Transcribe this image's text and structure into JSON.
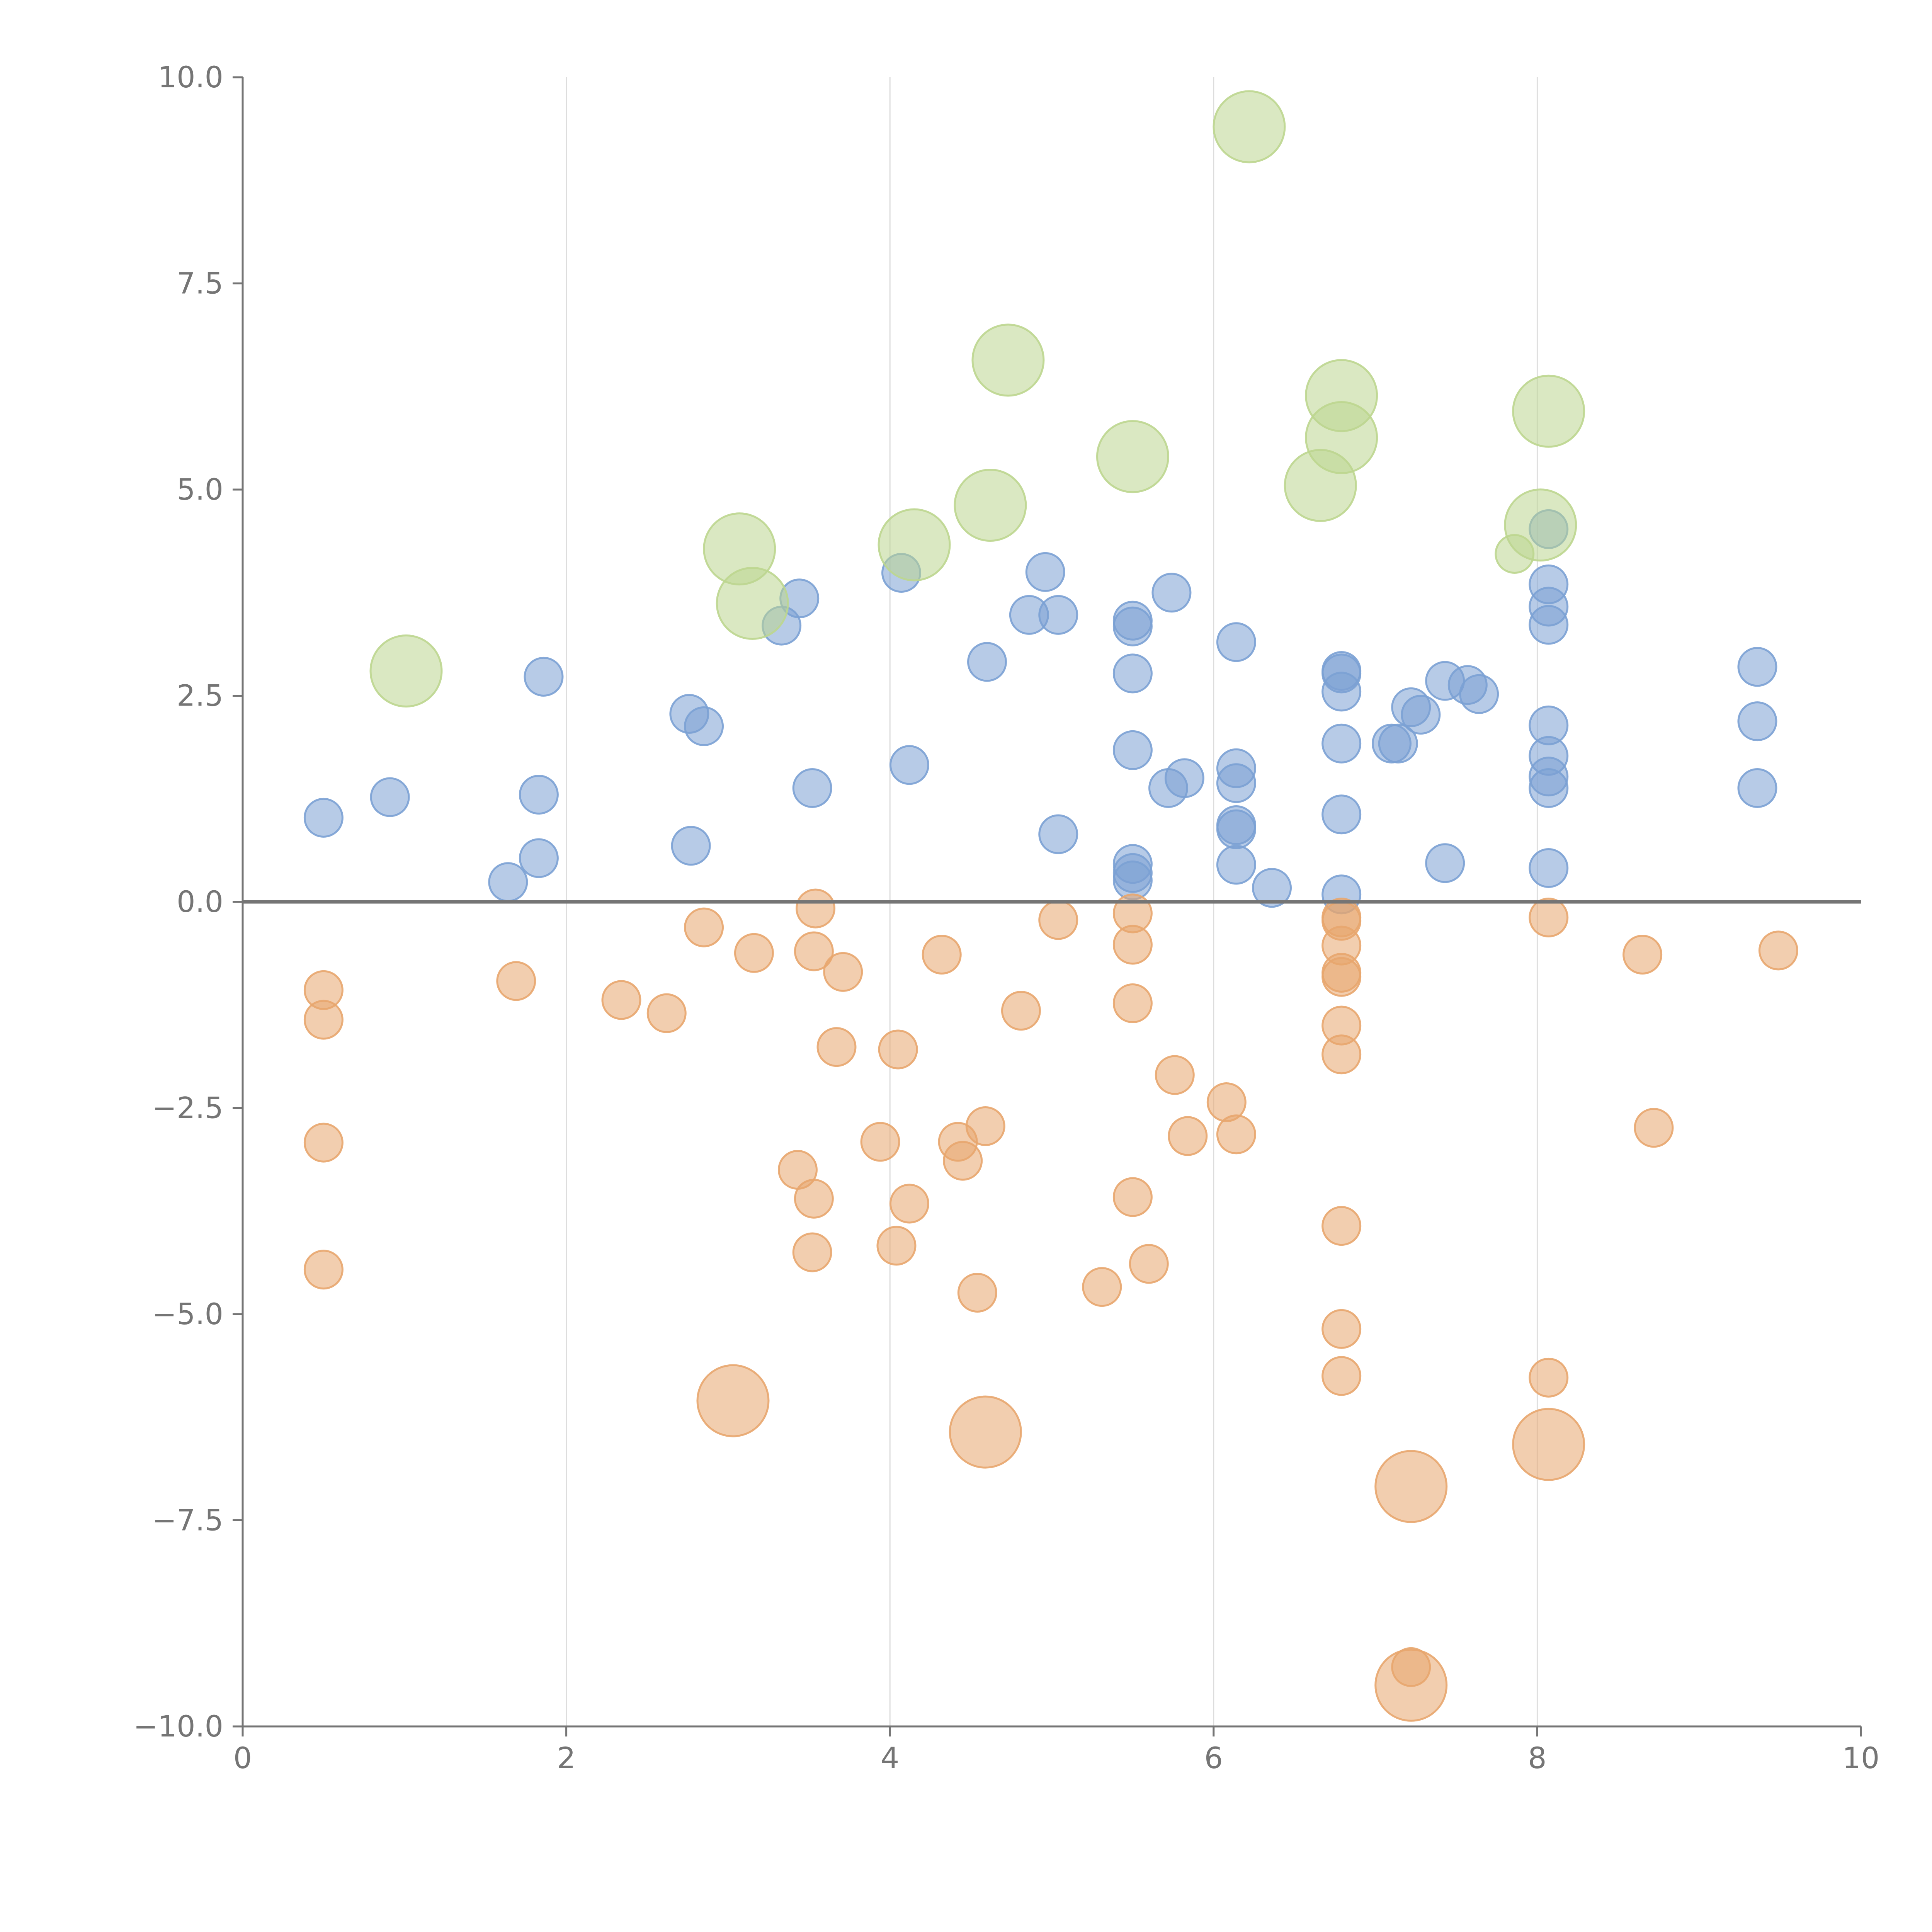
{
  "chart_data": {
    "type": "scatter",
    "title": "",
    "xlabel": "",
    "ylabel": "",
    "xlim": [
      0,
      10
    ],
    "ylim": [
      -10,
      10
    ],
    "x_ticks": [
      0,
      2,
      4,
      6,
      8,
      10
    ],
    "x_tick_labels": [
      "0",
      "2",
      "4",
      "6",
      "8",
      "10"
    ],
    "y_ticks": [
      10,
      7.5,
      5,
      2.5,
      0,
      -2.5,
      -5,
      -7.5,
      -10
    ],
    "y_tick_labels": [
      "10.0",
      "7.5",
      "5.0",
      "2.5",
      "0.0",
      "−2.5",
      "−5.0",
      "−7.5",
      "−10.0"
    ],
    "vertical_gridlines": [
      2,
      4,
      6,
      8
    ],
    "zero_line": true,
    "legend": "none",
    "series": [
      {
        "name": "blue",
        "color": "#7ba1d4",
        "points": [
          {
            "x": 0.5,
            "y": 1.02,
            "size": 1
          },
          {
            "x": 0.91,
            "y": 1.27,
            "size": 1
          },
          {
            "x": 1.64,
            "y": 0.24,
            "size": 1
          },
          {
            "x": 1.83,
            "y": 0.53,
            "size": 1
          },
          {
            "x": 1.83,
            "y": 1.3,
            "size": 1
          },
          {
            "x": 1.86,
            "y": 2.73,
            "size": 1
          },
          {
            "x": 2.77,
            "y": 0.68,
            "size": 1
          },
          {
            "x": 2.76,
            "y": 2.28,
            "size": 1
          },
          {
            "x": 2.85,
            "y": 2.13,
            "size": 1
          },
          {
            "x": 3.33,
            "y": 3.35,
            "size": 1
          },
          {
            "x": 3.44,
            "y": 3.68,
            "size": 1
          },
          {
            "x": 3.52,
            "y": 1.38,
            "size": 1
          },
          {
            "x": 4.07,
            "y": 3.99,
            "size": 1
          },
          {
            "x": 4.12,
            "y": 1.66,
            "size": 1
          },
          {
            "x": 4.6,
            "y": 2.91,
            "size": 1
          },
          {
            "x": 4.86,
            "y": 3.48,
            "size": 1
          },
          {
            "x": 4.96,
            "y": 4.0,
            "size": 1
          },
          {
            "x": 5.04,
            "y": 3.48,
            "size": 1
          },
          {
            "x": 5.04,
            "y": 0.82,
            "size": 1
          },
          {
            "x": 5.5,
            "y": 3.41,
            "size": 1
          },
          {
            "x": 5.5,
            "y": 3.34,
            "size": 1
          },
          {
            "x": 5.5,
            "y": 2.77,
            "size": 1
          },
          {
            "x": 5.5,
            "y": 1.84,
            "size": 1
          },
          {
            "x": 5.5,
            "y": 0.46,
            "size": 1
          },
          {
            "x": 5.5,
            "y": 0.35,
            "size": 1
          },
          {
            "x": 5.5,
            "y": 0.26,
            "size": 1
          },
          {
            "x": 5.72,
            "y": 1.38,
            "size": 1
          },
          {
            "x": 5.74,
            "y": 3.75,
            "size": 1
          },
          {
            "x": 5.82,
            "y": 1.5,
            "size": 1
          },
          {
            "x": 6.14,
            "y": 3.15,
            "size": 1
          },
          {
            "x": 6.14,
            "y": 1.62,
            "size": 1
          },
          {
            "x": 6.14,
            "y": 1.44,
            "size": 1
          },
          {
            "x": 6.14,
            "y": 0.93,
            "size": 1
          },
          {
            "x": 6.14,
            "y": 0.88,
            "size": 1
          },
          {
            "x": 6.14,
            "y": 0.45,
            "size": 1
          },
          {
            "x": 6.36,
            "y": 0.17,
            "size": 1
          },
          {
            "x": 6.79,
            "y": 2.8,
            "size": 1
          },
          {
            "x": 6.79,
            "y": 2.77,
            "size": 1
          },
          {
            "x": 6.79,
            "y": 2.55,
            "size": 1
          },
          {
            "x": 6.79,
            "y": 1.92,
            "size": 1
          },
          {
            "x": 6.79,
            "y": 1.06,
            "size": 1
          },
          {
            "x": 6.79,
            "y": 0.09,
            "size": 1
          },
          {
            "x": 7.1,
            "y": 1.92,
            "size": 1
          },
          {
            "x": 7.14,
            "y": 1.92,
            "size": 1
          },
          {
            "x": 7.22,
            "y": 2.36,
            "size": 1
          },
          {
            "x": 7.28,
            "y": 2.27,
            "size": 1
          },
          {
            "x": 7.43,
            "y": 2.68,
            "size": 1
          },
          {
            "x": 7.43,
            "y": 0.47,
            "size": 1
          },
          {
            "x": 7.57,
            "y": 2.63,
            "size": 1
          },
          {
            "x": 7.64,
            "y": 2.52,
            "size": 1
          },
          {
            "x": 8.07,
            "y": 4.52,
            "size": 1
          },
          {
            "x": 8.07,
            "y": 3.85,
            "size": 1
          },
          {
            "x": 8.07,
            "y": 3.58,
            "size": 1
          },
          {
            "x": 8.07,
            "y": 3.36,
            "size": 1
          },
          {
            "x": 8.07,
            "y": 2.14,
            "size": 1
          },
          {
            "x": 8.07,
            "y": 1.77,
            "size": 1
          },
          {
            "x": 8.07,
            "y": 1.52,
            "size": 1
          },
          {
            "x": 8.07,
            "y": 1.38,
            "size": 1
          },
          {
            "x": 8.07,
            "y": 0.41,
            "size": 1
          },
          {
            "x": 9.36,
            "y": 2.85,
            "size": 1
          },
          {
            "x": 9.36,
            "y": 2.19,
            "size": 1
          },
          {
            "x": 9.36,
            "y": 1.38,
            "size": 1
          }
        ]
      },
      {
        "name": "orange",
        "color": "#e8a66e",
        "points": [
          {
            "x": 0.5,
            "y": -1.07,
            "size": 1
          },
          {
            "x": 0.5,
            "y": -1.43,
            "size": 1
          },
          {
            "x": 0.5,
            "y": -2.92,
            "size": 1
          },
          {
            "x": 0.5,
            "y": -4.46,
            "size": 1
          },
          {
            "x": 1.69,
            "y": -0.96,
            "size": 1
          },
          {
            "x": 2.34,
            "y": -1.19,
            "size": 1
          },
          {
            "x": 2.62,
            "y": -1.35,
            "size": 1
          },
          {
            "x": 2.85,
            "y": -0.31,
            "size": 1
          },
          {
            "x": 3.16,
            "y": -0.62,
            "size": 1
          },
          {
            "x": 3.54,
            "y": -0.08,
            "size": 1
          },
          {
            "x": 3.53,
            "y": -0.6,
            "size": 1
          },
          {
            "x": 3.71,
            "y": -0.85,
            "size": 1
          },
          {
            "x": 3.67,
            "y": -1.76,
            "size": 1
          },
          {
            "x": 3.43,
            "y": -3.25,
            "size": 1
          },
          {
            "x": 3.53,
            "y": -3.6,
            "size": 1
          },
          {
            "x": 3.52,
            "y": -4.25,
            "size": 1
          },
          {
            "x": 4.05,
            "y": -1.79,
            "size": 1
          },
          {
            "x": 3.94,
            "y": -2.91,
            "size": 1
          },
          {
            "x": 4.12,
            "y": -3.66,
            "size": 1
          },
          {
            "x": 4.04,
            "y": -4.17,
            "size": 1
          },
          {
            "x": 4.32,
            "y": -0.64,
            "size": 1
          },
          {
            "x": 4.42,
            "y": -2.91,
            "size": 1
          },
          {
            "x": 4.45,
            "y": -3.14,
            "size": 1
          },
          {
            "x": 4.59,
            "y": -2.72,
            "size": 1
          },
          {
            "x": 4.54,
            "y": -4.74,
            "size": 1
          },
          {
            "x": 4.81,
            "y": -1.32,
            "size": 1
          },
          {
            "x": 5.04,
            "y": -0.22,
            "size": 1
          },
          {
            "x": 5.31,
            "y": -4.67,
            "size": 1
          },
          {
            "x": 5.5,
            "y": -0.14,
            "size": 1
          },
          {
            "x": 5.5,
            "y": -0.52,
            "size": 1
          },
          {
            "x": 5.5,
            "y": -1.23,
            "size": 1
          },
          {
            "x": 5.5,
            "y": -3.58,
            "size": 1
          },
          {
            "x": 5.6,
            "y": -4.39,
            "size": 1
          },
          {
            "x": 5.76,
            "y": -2.1,
            "size": 1
          },
          {
            "x": 5.84,
            "y": -2.84,
            "size": 1
          },
          {
            "x": 6.08,
            "y": -2.43,
            "size": 1
          },
          {
            "x": 6.14,
            "y": -2.82,
            "size": 1
          },
          {
            "x": 6.79,
            "y": -0.19,
            "size": 1
          },
          {
            "x": 6.79,
            "y": -0.23,
            "size": 1
          },
          {
            "x": 6.79,
            "y": -0.53,
            "size": 1
          },
          {
            "x": 6.79,
            "y": -0.86,
            "size": 1
          },
          {
            "x": 6.79,
            "y": -0.91,
            "size": 1
          },
          {
            "x": 6.79,
            "y": -1.5,
            "size": 1
          },
          {
            "x": 6.79,
            "y": -1.85,
            "size": 1
          },
          {
            "x": 6.79,
            "y": -3.93,
            "size": 1
          },
          {
            "x": 6.79,
            "y": -5.18,
            "size": 1
          },
          {
            "x": 6.79,
            "y": -5.75,
            "size": 1
          },
          {
            "x": 7.22,
            "y": -9.28,
            "size": 1
          },
          {
            "x": 8.07,
            "y": -0.19,
            "size": 1
          },
          {
            "x": 8.07,
            "y": -5.77,
            "size": 1
          },
          {
            "x": 8.65,
            "y": -0.64,
            "size": 1
          },
          {
            "x": 8.72,
            "y": -2.74,
            "size": 1
          },
          {
            "x": 9.49,
            "y": -0.59,
            "size": 1
          },
          {
            "x": 3.03,
            "y": -6.05,
            "size": 2
          },
          {
            "x": 4.59,
            "y": -6.43,
            "size": 2
          },
          {
            "x": 7.22,
            "y": -7.09,
            "size": 2
          },
          {
            "x": 8.07,
            "y": -6.58,
            "size": 2
          },
          {
            "x": 7.22,
            "y": -9.5,
            "size": 2
          }
        ]
      },
      {
        "name": "green",
        "color": "#bcd68f",
        "points": [
          {
            "x": 1.01,
            "y": 2.8,
            "size": 2
          },
          {
            "x": 3.07,
            "y": 4.28,
            "size": 2
          },
          {
            "x": 3.15,
            "y": 3.62,
            "size": 2
          },
          {
            "x": 4.15,
            "y": 4.33,
            "size": 2
          },
          {
            "x": 4.62,
            "y": 4.81,
            "size": 2
          },
          {
            "x": 4.73,
            "y": 6.57,
            "size": 2
          },
          {
            "x": 5.5,
            "y": 5.4,
            "size": 2
          },
          {
            "x": 6.22,
            "y": 9.4,
            "size": 2
          },
          {
            "x": 6.66,
            "y": 5.05,
            "size": 2
          },
          {
            "x": 6.79,
            "y": 6.14,
            "size": 2
          },
          {
            "x": 6.79,
            "y": 5.63,
            "size": 2
          },
          {
            "x": 8.02,
            "y": 4.57,
            "size": 2
          },
          {
            "x": 8.07,
            "y": 5.95,
            "size": 2
          },
          {
            "x": 7.86,
            "y": 4.22,
            "size": 1
          }
        ]
      }
    ]
  }
}
